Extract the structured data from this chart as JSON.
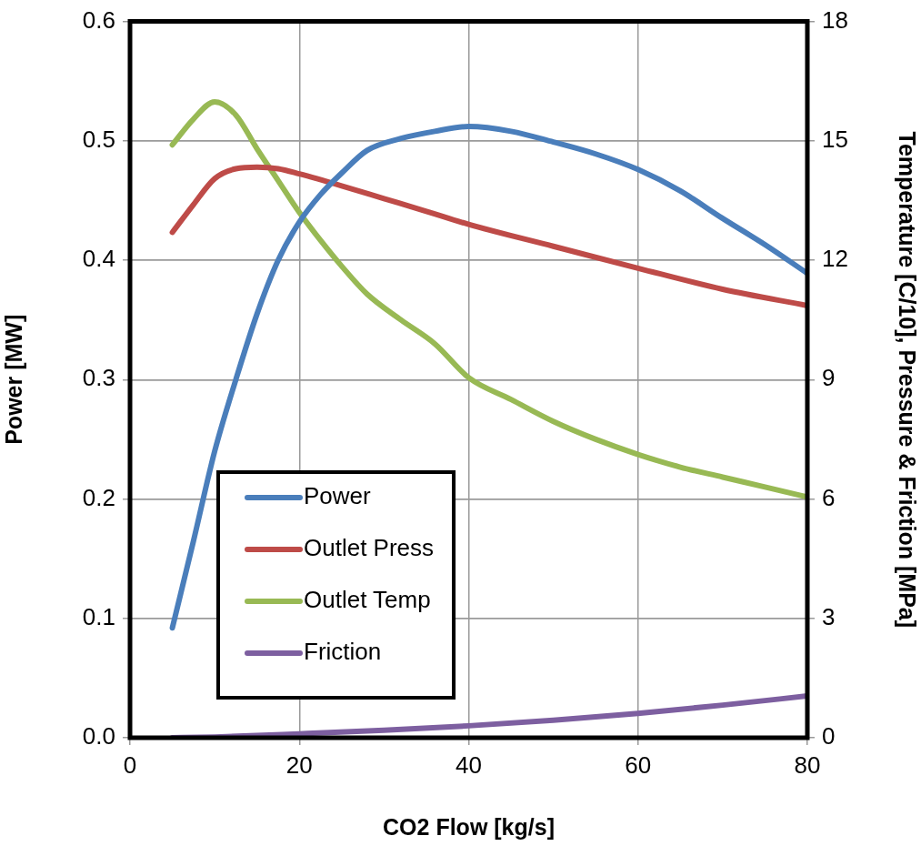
{
  "chart_data": {
    "type": "line",
    "xlabel": "CO2 Flow [kg/s]",
    "ylabel": "Power [MW]",
    "y2label": "Temperature [C/10], Pressure & Friction [MPa]",
    "xlim": [
      0,
      80
    ],
    "xticks": [
      0,
      20,
      40,
      60,
      80
    ],
    "ylim": [
      0,
      0.6
    ],
    "yticks": [
      {
        "value": 0,
        "label": "0.0"
      },
      {
        "value": 0.1,
        "label": "0.1"
      },
      {
        "value": 0.2,
        "label": "0.2"
      },
      {
        "value": 0.3,
        "label": "0.3"
      },
      {
        "value": 0.4,
        "label": "0.4"
      },
      {
        "value": 0.5,
        "label": "0.5"
      },
      {
        "value": 0.6,
        "label": "0.6"
      }
    ],
    "y2lim": [
      0,
      18
    ],
    "y2ticks": [
      0,
      3,
      6,
      9,
      12,
      15,
      18
    ],
    "grid": true,
    "legend": "bottom left",
    "marker": "none",
    "line_style": "solid",
    "series": [
      {
        "name": "Power",
        "color": "#4a7ebb",
        "x": [
          5,
          7.5,
          10,
          12.5,
          15,
          17.5,
          20,
          22.5,
          25,
          28,
          32,
          36,
          40,
          45,
          50,
          55,
          60,
          65,
          70,
          75,
          80
        ],
        "values": [
          0.092,
          0.165,
          0.24,
          0.3,
          0.355,
          0.4,
          0.432,
          0.455,
          0.473,
          0.492,
          0.502,
          0.508,
          0.512,
          0.508,
          0.499,
          0.489,
          0.476,
          0.458,
          0.435,
          0.413,
          0.389
        ]
      },
      {
        "name": "Outlet Press",
        "color": "#be4b48",
        "axis": "y2",
        "x": [
          5,
          7.5,
          10,
          12.5,
          15,
          17.5,
          20,
          25,
          30,
          35,
          40,
          50,
          60,
          70,
          80
        ],
        "values": [
          12.7,
          13.4,
          14.05,
          14.3,
          14.34,
          14.3,
          14.17,
          13.87,
          13.55,
          13.23,
          12.9,
          12.35,
          11.8,
          11.27,
          10.86
        ]
      },
      {
        "name": "Outlet Temp",
        "color": "#98b954",
        "axis": "y2",
        "x": [
          5,
          7.5,
          10,
          12.5,
          15,
          17.5,
          20,
          22.5,
          25,
          28,
          32,
          36,
          40,
          45,
          50,
          55,
          60,
          65,
          70,
          75,
          80
        ],
        "values": [
          14.9,
          15.55,
          15.98,
          15.65,
          14.8,
          14.0,
          13.2,
          12.5,
          11.85,
          11.15,
          10.5,
          9.9,
          9.05,
          8.5,
          7.95,
          7.5,
          7.12,
          6.8,
          6.55,
          6.3,
          6.05
        ]
      },
      {
        "name": "Friction",
        "color": "#7d5fa0",
        "axis": "y2",
        "x": [
          5,
          10,
          20,
          30,
          40,
          50,
          60,
          70,
          80
        ],
        "values": [
          0,
          0.02,
          0.1,
          0.19,
          0.3,
          0.44,
          0.61,
          0.82,
          1.05
        ]
      }
    ]
  }
}
